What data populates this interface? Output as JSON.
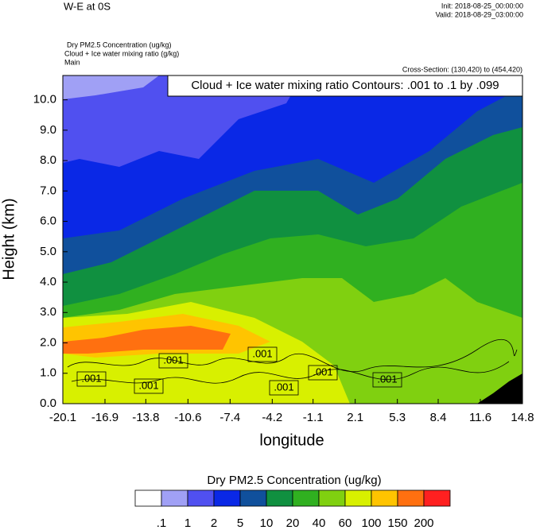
{
  "header": {
    "left": "W-E at 0S",
    "init": "Init: 2018-08-25_00:00:00",
    "valid": "Valid: 2018-08-29_03:00:00"
  },
  "chart_data": {
    "type": "contourf",
    "subtitle_lines": [
      "Dry PM2.5 Concentration   (ug/kg)",
      "Cloud + Ice water mixing ratio   (g/kg)",
      "Main"
    ],
    "cross_section": "Cross-Section: (130,420) to (454,420)",
    "annotation": "Cloud + Ice water mixing ratio Contours: .001 to .1 by .099",
    "xlabel": "longitude",
    "ylabel": "Height (km)",
    "xlim": [
      -20.1,
      14.8
    ],
    "xticks": [
      -20.1,
      -16.9,
      -13.8,
      -10.6,
      -7.4,
      -4.2,
      -1.1,
      2.1,
      5.3,
      8.4,
      11.6,
      14.8
    ],
    "ylim": [
      0,
      10.8
    ],
    "yticks": [
      {
        "value": 0,
        "label": "0.0"
      },
      {
        "value": 1,
        "label": "1.0"
      },
      {
        "value": 2,
        "label": "2.0"
      },
      {
        "value": 3,
        "label": "3.0"
      },
      {
        "value": 4,
        "label": "4.0"
      },
      {
        "value": 5,
        "label": "5.0"
      },
      {
        "value": 6,
        "label": "6.0"
      },
      {
        "value": 7,
        "label": "7.0"
      },
      {
        "value": 8,
        "label": "8.0"
      },
      {
        "value": 9,
        "label": "9.0"
      },
      {
        "value": 10,
        "label": "10.0"
      }
    ],
    "contour_label": {
      "value": 0.001,
      "label": ".001"
    },
    "colorbar": {
      "title": "Dry PM2.5 Concentration  (ug/kg)",
      "levels": [
        {
          "value": 0.1,
          "label": ".1"
        },
        1,
        2,
        5,
        10,
        20,
        40,
        60,
        100,
        150,
        200
      ],
      "colors": [
        "#ffffff",
        "#a0a0f5",
        "#5050f0",
        "#0a28e6",
        "#10509c",
        "#109040",
        "#30b020",
        "#80d010",
        "#d8f000",
        "#ffc400",
        "#ff7010",
        "#ff2020"
      ]
    }
  }
}
